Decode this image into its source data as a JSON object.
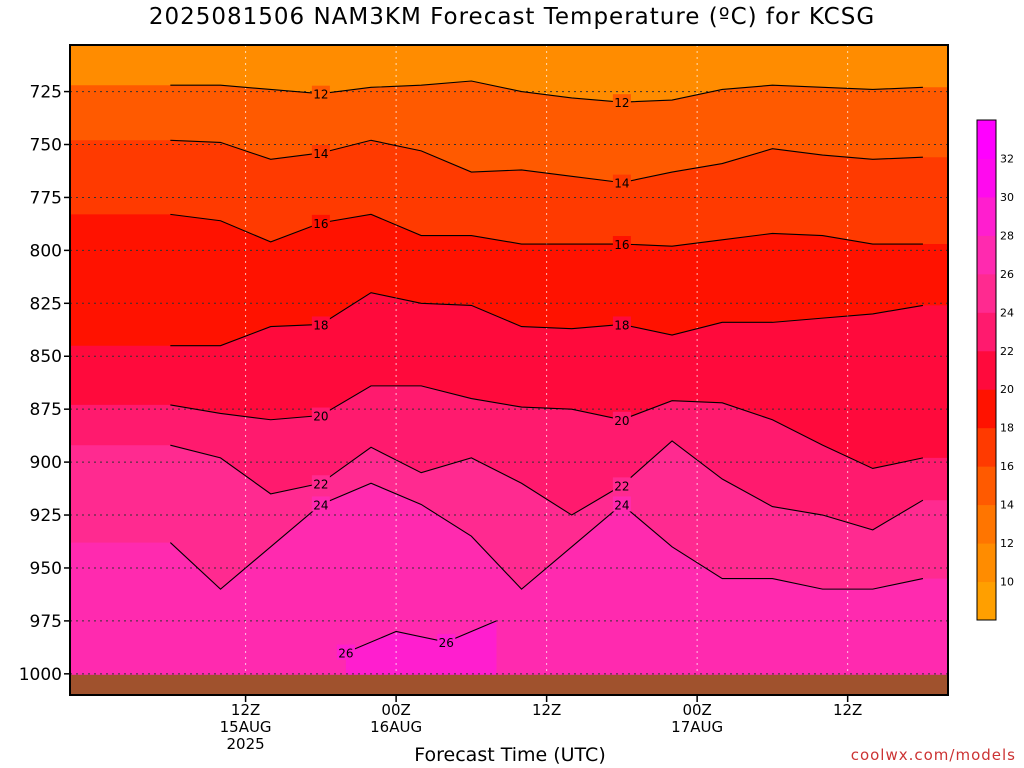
{
  "chart_data": {
    "type": "heatmap",
    "title": "2025081506 NAM3KM Forecast Temperature (ºC) for KCSG",
    "xlabel": "Forecast Time (UTC)",
    "ylabel": "",
    "credit": "coolwx.com/models",
    "y_axis": {
      "scale": "pressure (hPa), decreasing upward",
      "range": [
        1010,
        700
      ],
      "ticks": [
        "725",
        "750",
        "775",
        "800",
        "825",
        "850",
        "875",
        "900",
        "925",
        "950",
        "975",
        "1000"
      ],
      "tick_values": [
        725,
        750,
        775,
        800,
        825,
        850,
        875,
        900,
        925,
        950,
        975,
        1000
      ]
    },
    "x_axis": {
      "range_hours": [
        -8,
        42
      ],
      "ticks": [
        {
          "hour": 6,
          "lines": [
            "12Z",
            "15AUG",
            "2025"
          ]
        },
        {
          "hour": 18,
          "lines": [
            "00Z",
            "16AUG"
          ]
        },
        {
          "hour": 30,
          "lines": [
            "12Z"
          ]
        },
        {
          "hour": 42,
          "lines": [
            "00Z",
            "17AUG"
          ]
        },
        {
          "hour": 54,
          "lines": [
            "12Z"
          ]
        }
      ]
    },
    "x_hours_shown": [
      6,
      60
    ],
    "colorbar": {
      "labels": [
        "10",
        "12",
        "14",
        "16",
        "18",
        "20",
        "22",
        "24",
        "26",
        "28",
        "30",
        "32"
      ],
      "values": [
        10,
        12,
        14,
        16,
        18,
        20,
        22,
        24,
        26,
        28,
        30,
        32
      ],
      "colors": [
        "#ff9f00",
        "#ff8c00",
        "#ff7500",
        "#ff5a00",
        "#ff3a00",
        "#ff1200",
        "#ff0a3c",
        "#ff1a6e",
        "#ff2a90",
        "#ff2aaf",
        "#ff1ecf",
        "#ff0aee",
        "#ff00ff"
      ]
    },
    "contours": [
      {
        "value": 12,
        "label": "12",
        "pressure_at_hours": [
          [
            0,
            722
          ],
          [
            4,
            722
          ],
          [
            8,
            724
          ],
          [
            12,
            726
          ],
          [
            16,
            723
          ],
          [
            20,
            722
          ],
          [
            24,
            720
          ],
          [
            28,
            725
          ],
          [
            32,
            728
          ],
          [
            36,
            730
          ],
          [
            40,
            729
          ],
          [
            44,
            724
          ],
          [
            48,
            722
          ],
          [
            52,
            723
          ],
          [
            56,
            724
          ],
          [
            60,
            723
          ]
        ]
      },
      {
        "value": 14,
        "label": "14",
        "pressure_at_hours": [
          [
            0,
            748
          ],
          [
            4,
            749
          ],
          [
            8,
            757
          ],
          [
            12,
            754
          ],
          [
            16,
            748
          ],
          [
            20,
            753
          ],
          [
            24,
            763
          ],
          [
            28,
            762
          ],
          [
            32,
            765
          ],
          [
            36,
            768
          ],
          [
            40,
            763
          ],
          [
            44,
            759
          ],
          [
            48,
            752
          ],
          [
            52,
            755
          ],
          [
            56,
            757
          ],
          [
            60,
            756
          ]
        ]
      },
      {
        "value": 16,
        "label": "16",
        "pressure_at_hours": [
          [
            0,
            783
          ],
          [
            4,
            786
          ],
          [
            8,
            796
          ],
          [
            12,
            787
          ],
          [
            16,
            783
          ],
          [
            20,
            793
          ],
          [
            24,
            793
          ],
          [
            28,
            797
          ],
          [
            32,
            797
          ],
          [
            36,
            797
          ],
          [
            40,
            798
          ],
          [
            44,
            795
          ],
          [
            48,
            792
          ],
          [
            52,
            793
          ],
          [
            56,
            797
          ],
          [
            60,
            797
          ]
        ]
      },
      {
        "value": 18,
        "label": "18",
        "pressure_at_hours": [
          [
            0,
            845
          ],
          [
            4,
            845
          ],
          [
            8,
            836
          ],
          [
            12,
            835
          ],
          [
            16,
            820
          ],
          [
            20,
            825
          ],
          [
            24,
            826
          ],
          [
            28,
            836
          ],
          [
            32,
            837
          ],
          [
            36,
            835
          ],
          [
            40,
            840
          ],
          [
            44,
            834
          ],
          [
            48,
            834
          ],
          [
            52,
            832
          ],
          [
            56,
            830
          ],
          [
            60,
            826
          ]
        ]
      },
      {
        "value": 20,
        "label": "20",
        "pressure_at_hours": [
          [
            0,
            873
          ],
          [
            4,
            877
          ],
          [
            8,
            880
          ],
          [
            12,
            878
          ],
          [
            16,
            864
          ],
          [
            20,
            864
          ],
          [
            24,
            870
          ],
          [
            28,
            874
          ],
          [
            32,
            875
          ],
          [
            36,
            880
          ],
          [
            40,
            871
          ],
          [
            44,
            872
          ],
          [
            48,
            880
          ],
          [
            52,
            892
          ],
          [
            56,
            903
          ],
          [
            60,
            898
          ]
        ]
      },
      {
        "value": 22,
        "label": "22",
        "pressure_at_hours": [
          [
            0,
            892
          ],
          [
            4,
            898
          ],
          [
            8,
            915
          ],
          [
            12,
            910
          ],
          [
            16,
            893
          ],
          [
            20,
            905
          ],
          [
            24,
            898
          ],
          [
            28,
            910
          ],
          [
            32,
            925
          ],
          [
            36,
            911
          ],
          [
            40,
            890
          ],
          [
            44,
            908
          ],
          [
            48,
            921
          ],
          [
            52,
            925
          ],
          [
            56,
            932
          ],
          [
            60,
            918
          ]
        ]
      },
      {
        "value": 24,
        "label": "24",
        "pressure_at_hours": [
          [
            0,
            938
          ],
          [
            4,
            960
          ],
          [
            8,
            940
          ],
          [
            12,
            920
          ],
          [
            16,
            910
          ],
          [
            20,
            920
          ],
          [
            24,
            935
          ],
          [
            28,
            960
          ],
          [
            32,
            940
          ],
          [
            36,
            920
          ],
          [
            40,
            940
          ],
          [
            44,
            955
          ],
          [
            48,
            955
          ],
          [
            52,
            960
          ],
          [
            56,
            960
          ],
          [
            60,
            955
          ]
        ]
      },
      {
        "value": 26,
        "label": "26",
        "pressure_at_hours": [
          [
            14,
            990
          ],
          [
            18,
            980
          ],
          [
            22,
            985
          ],
          [
            26,
            975
          ]
        ]
      }
    ]
  }
}
